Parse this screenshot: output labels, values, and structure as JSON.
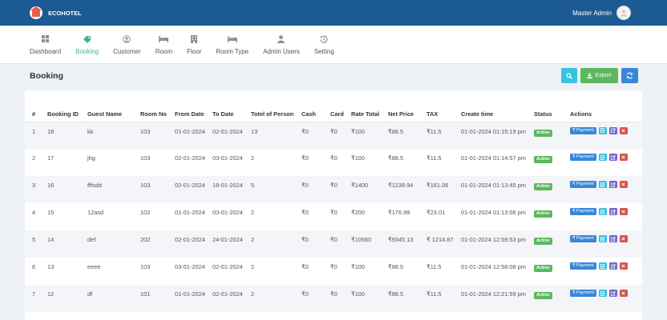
{
  "header": {
    "brand": "ECOHOTEL",
    "user": "Master Admin"
  },
  "nav": [
    {
      "label": "Dashboard",
      "icon": "grid-icon"
    },
    {
      "label": "Booking",
      "icon": "tag-icon",
      "active": true
    },
    {
      "label": "Customer",
      "icon": "user-circle-icon"
    },
    {
      "label": "Room",
      "icon": "bed-icon"
    },
    {
      "label": "Floor",
      "icon": "building-icon"
    },
    {
      "label": "Room Type",
      "icon": "bed-icon"
    },
    {
      "label": "Admin Users",
      "icon": "user-icon"
    },
    {
      "label": "Setting",
      "icon": "history-icon"
    }
  ],
  "page": {
    "title": "Booking"
  },
  "toolbar": {
    "export_label": "Export"
  },
  "colors": {
    "header": "#1b5a93",
    "accent": "#3cb48f",
    "active": "#5cb85c",
    "payment": "#3a87d8",
    "delete": "#d9534f"
  },
  "table": {
    "columns": [
      "#",
      "Booking ID",
      "Guest Name",
      "Room No",
      "From Date",
      "To Date",
      "Totel of Person",
      "Cash",
      "Card",
      "Rate Total",
      "Net Price",
      "TAX",
      "Create time",
      "Status",
      "Actions"
    ],
    "rows": [
      {
        "n": "1",
        "id": "18",
        "guest": "kk",
        "room": "103",
        "from": "01-01-2024",
        "to": "02-01-2024",
        "persons": "13",
        "cash": "₹0",
        "card": "₹0",
        "rate": "₹100",
        "net": "₹88.5",
        "tax": "₹11.5",
        "created": "01-01-2024 01:15:19 pm",
        "status": "Active"
      },
      {
        "n": "2",
        "id": "17",
        "guest": "jhg",
        "room": "103",
        "from": "02-01-2024",
        "to": "03-01-2024",
        "persons": "2",
        "cash": "₹0",
        "card": "₹0",
        "rate": "₹100",
        "net": "₹88.5",
        "tax": "₹11.5",
        "created": "01-01-2024 01:14:57 pm",
        "status": "Active"
      },
      {
        "n": "3",
        "id": "16",
        "guest": "fffsdd",
        "room": "103",
        "from": "02-01-2024",
        "to": "16-01-2024",
        "persons": "5",
        "cash": "₹0",
        "card": "₹0",
        "rate": "₹1400",
        "net": "₹1238.94",
        "tax": "₹161.06",
        "created": "01-01-2024 01:13:45 pm",
        "status": "Active"
      },
      {
        "n": "4",
        "id": "15",
        "guest": "12asd",
        "room": "102",
        "from": "01-01-2024",
        "to": "03-01-2024",
        "persons": "2",
        "cash": "₹0",
        "card": "₹0",
        "rate": "₹200",
        "net": "₹176.99",
        "tax": "₹23.01",
        "created": "01-01-2024 01:13:06 pm",
        "status": "Active"
      },
      {
        "n": "5",
        "id": "14",
        "guest": "def",
        "room": "202",
        "from": "02-01-2024",
        "to": "24-01-2024",
        "persons": "2",
        "cash": "₹0",
        "card": "₹0",
        "rate": "₹10560",
        "net": "₹9345.13",
        "tax": "₹ 1214.87",
        "created": "01-01-2024 12:59:53 pm",
        "status": "Active"
      },
      {
        "n": "6",
        "id": "13",
        "guest": "eeee",
        "room": "103",
        "from": "03-01-2024",
        "to": "02-01-2024",
        "persons": "2",
        "cash": "₹0",
        "card": "₹0",
        "rate": "₹100",
        "net": "₹88.5",
        "tax": "₹11.5",
        "created": "01-01-2024 12:58:08 pm",
        "status": "Active"
      },
      {
        "n": "7",
        "id": "12",
        "guest": "df",
        "room": "101",
        "from": "01-01-2024",
        "to": "02-01-2024",
        "persons": "2",
        "cash": "₹0",
        "card": "₹0",
        "rate": "₹100",
        "net": "₹88.5",
        "tax": "₹11.5",
        "created": "01-01-2024 12:21:59 pm",
        "status": "Active"
      }
    ],
    "action_payment_label": "₹ Payment"
  }
}
